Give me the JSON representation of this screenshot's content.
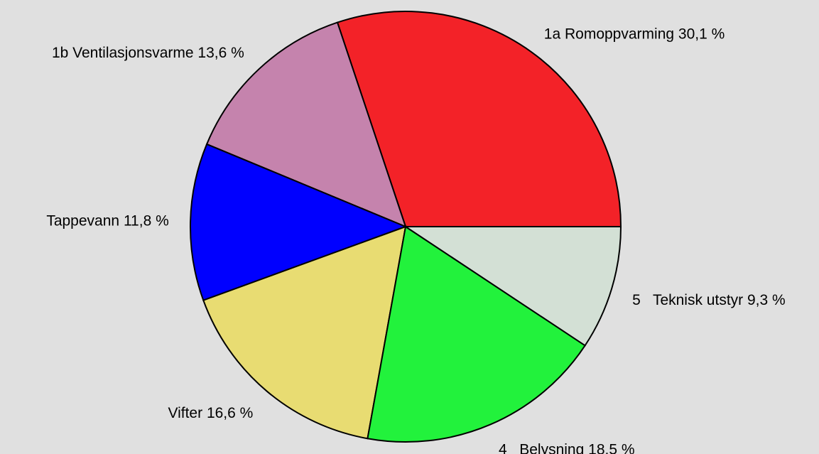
{
  "chart_data": {
    "type": "pie",
    "categories": [
      "1a Romoppvarming",
      "1b Ventilasjonsvarme",
      "Tappevann",
      "Vifter",
      "4   Belysning",
      "5   Teknisk utstyr"
    ],
    "values": [
      30.1,
      13.6,
      11.8,
      16.6,
      18.5,
      9.3
    ],
    "value_labels": [
      "30,1 %",
      "13,6 %",
      "11,8 %",
      "16,6 %",
      "18,5 %",
      "9,3 %"
    ],
    "colors": [
      "#f32228",
      "#c583ad",
      "#0000ff",
      "#e8dc72",
      "#22f23c",
      "#d3e0d5"
    ]
  }
}
